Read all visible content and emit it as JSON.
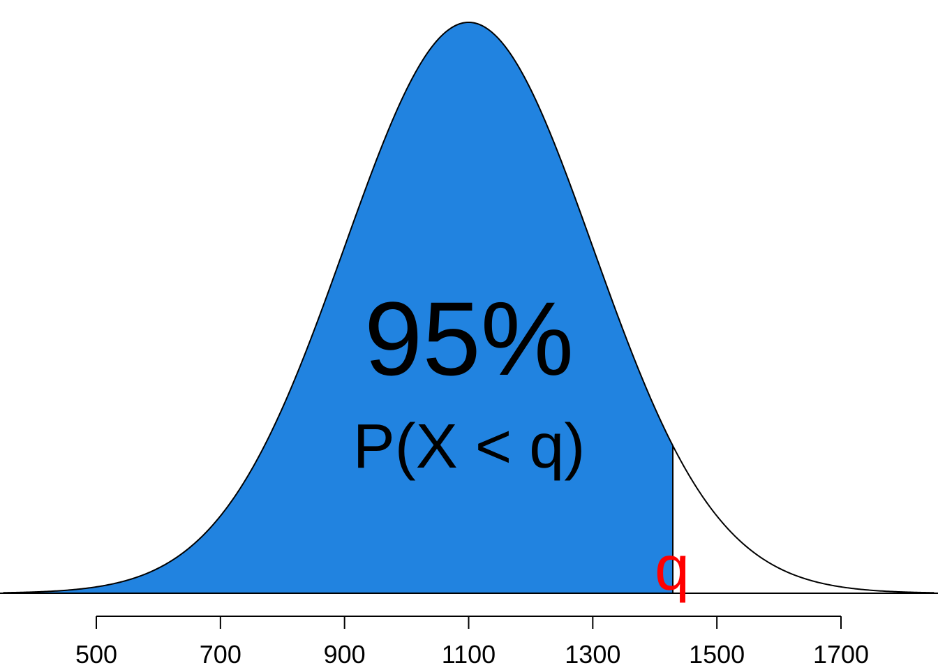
{
  "chart_data": {
    "type": "area",
    "distribution": "normal",
    "mean": 1100,
    "sd": 200,
    "quantile_q": 1429,
    "shaded_probability": 0.95,
    "x_range": [
      350,
      1850
    ],
    "ticks": [
      500,
      700,
      900,
      1100,
      1300,
      1500,
      1700
    ],
    "tick_labels": [
      "500",
      "700",
      "900",
      "1100",
      "1300",
      "1500",
      "1700"
    ],
    "annotations": {
      "percent": "95%",
      "probability": "P(X < q)",
      "quantile": "q"
    },
    "colors": {
      "fill": "#2183E0",
      "curve": "#000000",
      "quantile_label": "#FF0000"
    },
    "xlabel": "",
    "ylabel": ""
  }
}
